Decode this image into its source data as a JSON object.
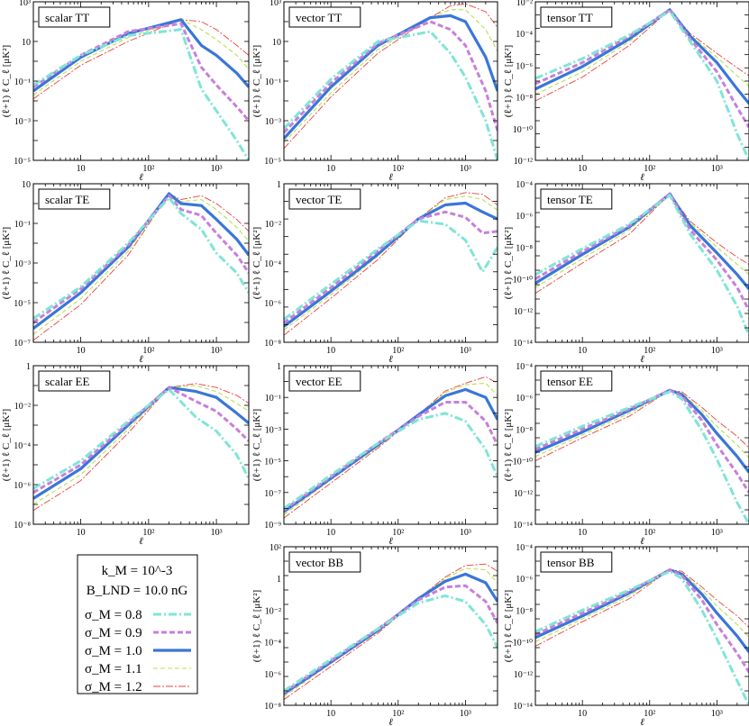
{
  "figure": {
    "xlabel": "ℓ",
    "ylabel": "(ℓ+1) ℓ C_ℓ [μK²]",
    "legend": {
      "k_label": "k_M = 10^-3",
      "b_label": "B_LND = 10.0 nG",
      "entries": [
        "σ_M = 0.8",
        "σ_M = 0.9",
        "σ_M = 1.0",
        "σ_M = 1.1",
        "σ_M = 1.2"
      ]
    }
  },
  "series_styles": [
    {
      "sigma": 0.8,
      "color": "#7fe5d6",
      "dash": "9,3,2,3",
      "width": 3.0
    },
    {
      "sigma": 0.9,
      "color": "#c77fdc",
      "dash": "6,3",
      "width": 3.0
    },
    {
      "sigma": 1.0,
      "color": "#3a76d8",
      "dash": "",
      "width": 3.2
    },
    {
      "sigma": 1.1,
      "color": "#b8e04e",
      "dash": "5,3",
      "width": 1.1
    },
    {
      "sigma": 1.2,
      "color": "#e8433a",
      "dash": "8,2,2,2",
      "width": 0.9
    }
  ],
  "chart_data": [
    {
      "type": "line",
      "title": "scalar TT",
      "xlim": [
        2,
        3000
      ],
      "ylog": [
        -5,
        3
      ],
      "ytick_labels": [
        "10⁻⁵",
        "10⁻³",
        "10⁻¹",
        "10",
        "10³"
      ],
      "x": [
        2,
        10,
        50,
        300,
        600,
        1000,
        2000,
        3000
      ],
      "series": [
        {
          "name": "σ_M = 0.8",
          "values": [
            -1.2,
            0.3,
            1.3,
            1.6,
            -1.4,
            -2.5,
            -4.0,
            -5.0
          ]
        },
        {
          "name": "σ_M = 0.9",
          "values": [
            -1.3,
            0.3,
            1.5,
            1.9,
            -0.3,
            -1.2,
            -2.3,
            -3.0
          ]
        },
        {
          "name": "σ_M = 1.0",
          "values": [
            -1.5,
            0.2,
            1.4,
            2.1,
            0.8,
            0.3,
            -0.6,
            -1.3
          ]
        },
        {
          "name": "σ_M = 1.1",
          "values": [
            -1.7,
            0.0,
            1.2,
            2.1,
            1.6,
            1.1,
            0.3,
            -0.4
          ]
        },
        {
          "name": "σ_M = 1.2",
          "values": [
            -1.9,
            -0.2,
            1.0,
            2.1,
            2.0,
            1.6,
            0.8,
            0.3
          ]
        }
      ]
    },
    {
      "type": "line",
      "title": "vector TT",
      "xlim": [
        2,
        3000
      ],
      "ylog": [
        -5,
        3
      ],
      "ytick_labels": [
        "10⁻⁵",
        "10⁻³",
        "10⁻¹",
        "10",
        "10³"
      ],
      "x": [
        2,
        10,
        50,
        300,
        600,
        1000,
        2000,
        3000
      ],
      "series": [
        {
          "name": "σ_M = 0.8",
          "values": [
            -3.4,
            -0.9,
            1.0,
            1.5,
            0.4,
            -0.8,
            -3.0,
            -5.0
          ]
        },
        {
          "name": "σ_M = 0.9",
          "values": [
            -3.6,
            -1.1,
            0.9,
            2.0,
            1.6,
            0.8,
            -1.5,
            -3.5
          ]
        },
        {
          "name": "σ_M = 1.0",
          "values": [
            -3.9,
            -1.3,
            0.8,
            2.2,
            2.3,
            2.0,
            0.2,
            -1.5
          ]
        },
        {
          "name": "σ_M = 1.1",
          "values": [
            -4.1,
            -1.6,
            0.6,
            2.2,
            2.6,
            2.6,
            1.6,
            0.5
          ]
        },
        {
          "name": "σ_M = 1.2",
          "values": [
            -4.4,
            -1.8,
            0.4,
            2.2,
            2.8,
            2.9,
            2.5,
            1.7
          ]
        }
      ]
    },
    {
      "type": "line",
      "title": "tensor TT",
      "xlim": [
        2,
        3000
      ],
      "ylog": [
        -13,
        -1
      ],
      "ytick_labels": [
        "10⁻¹²",
        "10⁻¹⁰",
        "10⁻⁸",
        "10⁻⁶",
        "10⁻⁴",
        "10⁻²"
      ],
      "x": [
        2,
        10,
        50,
        200,
        400,
        1000,
        2000,
        3000
      ],
      "series": [
        {
          "name": "σ_M = 0.8",
          "values": [
            -6.8,
            -5.3,
            -3.5,
            -1.7,
            -4.0,
            -7.0,
            -11.0,
            -13.0
          ]
        },
        {
          "name": "σ_M = 0.9",
          "values": [
            -7.2,
            -5.6,
            -3.6,
            -1.6,
            -3.8,
            -6.3,
            -9.0,
            -10.5
          ]
        },
        {
          "name": "σ_M = 1.0",
          "values": [
            -7.6,
            -5.9,
            -3.8,
            -1.6,
            -3.6,
            -5.6,
            -7.6,
            -8.7
          ]
        },
        {
          "name": "σ_M = 1.1",
          "values": [
            -8.0,
            -6.3,
            -4.0,
            -1.6,
            -3.5,
            -5.2,
            -6.6,
            -7.4
          ]
        },
        {
          "name": "σ_M = 1.2",
          "values": [
            -8.5,
            -6.7,
            -4.3,
            -1.6,
            -3.4,
            -4.9,
            -6.0,
            -6.6
          ]
        }
      ]
    },
    {
      "type": "line",
      "title": "scalar TE",
      "xlim": [
        2,
        3000
      ],
      "ylog": [
        -7,
        1
      ],
      "ytick_labels": [
        "10⁻⁷",
        "10⁻⁵",
        "10⁻³",
        "10⁻¹",
        "10"
      ],
      "x": [
        2,
        10,
        50,
        200,
        300,
        600,
        1000,
        2000,
        3000
      ],
      "series": [
        {
          "name": "σ_M = 0.8",
          "values": [
            -5.8,
            -4.2,
            -2.0,
            0.3,
            -0.5,
            -1.3,
            -2.5,
            -3.5,
            -4.5
          ]
        },
        {
          "name": "σ_M = 0.9",
          "values": [
            -6.0,
            -4.3,
            -2.1,
            0.4,
            -0.3,
            -0.6,
            -1.5,
            -2.6,
            -3.5
          ]
        },
        {
          "name": "σ_M = 1.0",
          "values": [
            -6.3,
            -4.5,
            -2.2,
            0.5,
            0.0,
            -0.1,
            -0.8,
            -1.8,
            -2.6
          ]
        },
        {
          "name": "σ_M = 1.1",
          "values": [
            -6.6,
            -4.8,
            -2.4,
            0.5,
            0.1,
            0.2,
            -0.3,
            -1.2,
            -1.9
          ]
        },
        {
          "name": "σ_M = 1.2",
          "values": [
            -6.9,
            -5.1,
            -2.6,
            0.5,
            0.2,
            0.4,
            0.0,
            -0.8,
            -1.4
          ]
        }
      ]
    },
    {
      "type": "line",
      "title": "vector TE",
      "xlim": [
        2,
        3000
      ],
      "ylog": [
        -8,
        1
      ],
      "ytick_labels": [
        "10⁻⁸",
        "10⁻⁶",
        "10⁻⁴",
        "10⁻²",
        "1"
      ],
      "x": [
        2,
        10,
        50,
        200,
        500,
        1000,
        1800,
        3000
      ],
      "series": [
        {
          "name": "σ_M = 0.8",
          "values": [
            -6.7,
            -4.7,
            -2.7,
            -1.1,
            -1.3,
            -2.2,
            -4.0,
            -2.6
          ]
        },
        {
          "name": "σ_M = 0.9",
          "values": [
            -6.9,
            -4.9,
            -2.8,
            -1.0,
            -0.6,
            -0.9,
            -1.8,
            -1.7
          ]
        },
        {
          "name": "σ_M = 1.0",
          "values": [
            -7.1,
            -5.1,
            -3.0,
            -1.0,
            -0.2,
            -0.1,
            -0.6,
            -1.0
          ]
        },
        {
          "name": "σ_M = 1.1",
          "values": [
            -7.3,
            -5.3,
            -3.1,
            -1.0,
            0.1,
            0.3,
            0.1,
            -0.5
          ]
        },
        {
          "name": "σ_M = 1.2",
          "values": [
            -7.6,
            -5.5,
            -3.3,
            -1.0,
            0.2,
            0.5,
            0.4,
            -0.2
          ]
        }
      ]
    },
    {
      "type": "line",
      "title": "tensor TE",
      "xlim": [
        2,
        3000
      ],
      "ylog": [
        -14,
        -3
      ],
      "ytick_labels": [
        "10⁻¹⁴",
        "10⁻¹²",
        "10⁻¹⁰",
        "10⁻⁸",
        "10⁻⁶",
        "10⁻⁴"
      ],
      "x": [
        2,
        10,
        50,
        200,
        400,
        1000,
        2000,
        3000
      ],
      "series": [
        {
          "name": "σ_M = 0.8",
          "values": [
            -9.3,
            -7.5,
            -5.8,
            -3.8,
            -6.5,
            -9.0,
            -11.5,
            -13.5
          ]
        },
        {
          "name": "σ_M = 0.9",
          "values": [
            -9.6,
            -7.7,
            -5.9,
            -3.7,
            -6.2,
            -8.3,
            -10.2,
            -11.8
          ]
        },
        {
          "name": "σ_M = 1.0",
          "values": [
            -9.9,
            -7.9,
            -6.0,
            -3.7,
            -5.9,
            -7.8,
            -9.3,
            -10.3
          ]
        },
        {
          "name": "σ_M = 1.1",
          "values": [
            -10.2,
            -8.2,
            -6.2,
            -3.7,
            -5.7,
            -7.4,
            -8.6,
            -9.3
          ]
        },
        {
          "name": "σ_M = 1.2",
          "values": [
            -10.6,
            -8.5,
            -6.5,
            -3.7,
            -5.6,
            -7.1,
            -8.1,
            -8.6
          ]
        }
      ]
    },
    {
      "type": "line",
      "title": "scalar EE",
      "xlim": [
        2,
        3000
      ],
      "ylog": [
        -8,
        0
      ],
      "ytick_labels": [
        "10⁻⁸",
        "10⁻⁶",
        "10⁻⁴",
        "10⁻²",
        "1"
      ],
      "x": [
        2,
        10,
        50,
        200,
        500,
        1000,
        2000,
        3000
      ],
      "series": [
        {
          "name": "σ_M = 0.8",
          "values": [
            -6.2,
            -4.8,
            -2.8,
            -1.2,
            -2.6,
            -3.3,
            -4.5,
            -5.7
          ]
        },
        {
          "name": "σ_M = 0.9",
          "values": [
            -6.4,
            -5.0,
            -2.9,
            -1.1,
            -1.8,
            -2.3,
            -3.2,
            -3.8
          ]
        },
        {
          "name": "σ_M = 1.0",
          "values": [
            -6.7,
            -5.2,
            -3.0,
            -1.1,
            -1.3,
            -1.6,
            -2.4,
            -2.9
          ]
        },
        {
          "name": "σ_M = 1.1",
          "values": [
            -7.0,
            -5.5,
            -3.2,
            -1.1,
            -1.0,
            -1.3,
            -1.9,
            -2.3
          ]
        },
        {
          "name": "σ_M = 1.2",
          "values": [
            -7.3,
            -5.8,
            -3.4,
            -1.1,
            -0.9,
            -1.1,
            -1.5,
            -1.9
          ]
        }
      ]
    },
    {
      "type": "line",
      "title": "vector EE",
      "xlim": [
        2,
        3000
      ],
      "ylog": [
        -9,
        1
      ],
      "ytick_labels": [
        "10⁻⁹",
        "10⁻⁷",
        "10⁻⁵",
        "10⁻³",
        "10⁻¹",
        "1"
      ],
      "x": [
        2,
        10,
        50,
        200,
        500,
        1000,
        2000,
        3000
      ],
      "series": [
        {
          "name": "σ_M = 0.8",
          "values": [
            -8.0,
            -5.9,
            -3.9,
            -2.4,
            -2.0,
            -2.5,
            -4.3,
            -6.0
          ]
        },
        {
          "name": "σ_M = 0.9",
          "values": [
            -8.1,
            -6.0,
            -3.9,
            -2.2,
            -1.3,
            -1.3,
            -2.5,
            -4.0
          ]
        },
        {
          "name": "σ_M = 1.0",
          "values": [
            -8.2,
            -6.1,
            -4.0,
            -2.1,
            -0.9,
            -0.5,
            -1.0,
            -2.4
          ]
        },
        {
          "name": "σ_M = 1.1",
          "values": [
            -8.4,
            -6.2,
            -4.1,
            -2.1,
            -0.7,
            -0.2,
            -0.1,
            -0.9
          ]
        },
        {
          "name": "σ_M = 1.2",
          "values": [
            -8.6,
            -6.4,
            -4.2,
            -2.1,
            -0.6,
            -0.1,
            0.3,
            -0.1
          ]
        }
      ]
    },
    {
      "type": "line",
      "title": "tensor EE",
      "xlim": [
        2,
        3000
      ],
      "ylog": [
        -15,
        -4
      ],
      "ytick_labels": [
        "10⁻¹⁴",
        "10⁻¹²",
        "10⁻¹⁰",
        "10⁻⁸",
        "10⁻⁶",
        "10⁻⁴"
      ],
      "x": [
        2,
        10,
        50,
        200,
        300,
        600,
        1000,
        2000,
        3000
      ],
      "series": [
        {
          "name": "σ_M = 0.8",
          "values": [
            -9.6,
            -8.2,
            -6.9,
            -5.8,
            -6.3,
            -8.5,
            -10.5,
            -13.5,
            -15.0
          ]
        },
        {
          "name": "σ_M = 0.9",
          "values": [
            -9.8,
            -8.4,
            -7.0,
            -5.7,
            -6.1,
            -7.8,
            -9.5,
            -11.5,
            -12.8
          ]
        },
        {
          "name": "σ_M = 1.0",
          "values": [
            -10.0,
            -8.6,
            -7.1,
            -5.7,
            -6.0,
            -7.4,
            -8.7,
            -10.3,
            -11.4
          ]
        },
        {
          "name": "σ_M = 1.1",
          "values": [
            -10.3,
            -8.8,
            -7.3,
            -5.7,
            -5.9,
            -7.1,
            -8.2,
            -9.5,
            -10.4
          ]
        },
        {
          "name": "σ_M = 1.2",
          "values": [
            -10.6,
            -9.0,
            -7.5,
            -5.7,
            -5.8,
            -6.9,
            -7.8,
            -8.9,
            -9.7
          ]
        }
      ]
    },
    {
      "type": "line",
      "title": "vector BB",
      "xlim": [
        2,
        3000
      ],
      "ylog": [
        -9,
        2
      ],
      "ytick_labels": [
        "10⁻⁸",
        "10⁻⁶",
        "10⁻⁴",
        "10⁻²",
        "1",
        "10²"
      ],
      "x": [
        2,
        10,
        50,
        200,
        500,
        1000,
        2000,
        3000
      ],
      "series": [
        {
          "name": "σ_M = 0.8",
          "values": [
            -8.0,
            -5.8,
            -3.7,
            -1.9,
            -1.4,
            -1.8,
            -3.4,
            -5.0
          ]
        },
        {
          "name": "σ_M = 0.9",
          "values": [
            -8.1,
            -5.9,
            -3.7,
            -1.7,
            -0.8,
            -0.7,
            -1.8,
            -3.3
          ]
        },
        {
          "name": "σ_M = 1.0",
          "values": [
            -8.2,
            -6.0,
            -3.8,
            -1.6,
            -0.4,
            0.1,
            -0.5,
            -1.8
          ]
        },
        {
          "name": "σ_M = 1.1",
          "values": [
            -8.4,
            -6.1,
            -3.9,
            -1.6,
            -0.2,
            0.5,
            0.4,
            -0.5
          ]
        },
        {
          "name": "σ_M = 1.2",
          "values": [
            -8.6,
            -6.3,
            -4.0,
            -1.6,
            -0.1,
            0.7,
            0.8,
            0.3
          ]
        }
      ]
    },
    {
      "type": "line",
      "title": "tensor BB",
      "xlim": [
        2,
        3000
      ],
      "ylog": [
        -15,
        -4
      ],
      "ytick_labels": [
        "10⁻¹⁴",
        "10⁻¹²",
        "10⁻¹⁰",
        "10⁻⁸",
        "10⁻⁶",
        "10⁻⁴"
      ],
      "x": [
        2,
        10,
        50,
        200,
        300,
        600,
        1000,
        2000,
        3000
      ],
      "series": [
        {
          "name": "σ_M = 0.8",
          "values": [
            -9.9,
            -8.4,
            -7.0,
            -5.7,
            -6.2,
            -8.4,
            -10.4,
            -13.3,
            -15.0
          ]
        },
        {
          "name": "σ_M = 0.9",
          "values": [
            -10.1,
            -8.6,
            -7.1,
            -5.6,
            -6.0,
            -7.7,
            -9.4,
            -11.4,
            -12.7
          ]
        },
        {
          "name": "σ_M = 1.0",
          "values": [
            -10.3,
            -8.8,
            -7.2,
            -5.6,
            -5.9,
            -7.3,
            -8.6,
            -10.2,
            -11.3
          ]
        },
        {
          "name": "σ_M = 1.1",
          "values": [
            -10.6,
            -9.0,
            -7.4,
            -5.6,
            -5.8,
            -7.0,
            -8.1,
            -9.4,
            -10.3
          ]
        },
        {
          "name": "σ_M = 1.2",
          "values": [
            -10.9,
            -9.2,
            -7.6,
            -5.6,
            -5.7,
            -6.8,
            -7.7,
            -8.8,
            -9.6
          ]
        }
      ]
    }
  ]
}
